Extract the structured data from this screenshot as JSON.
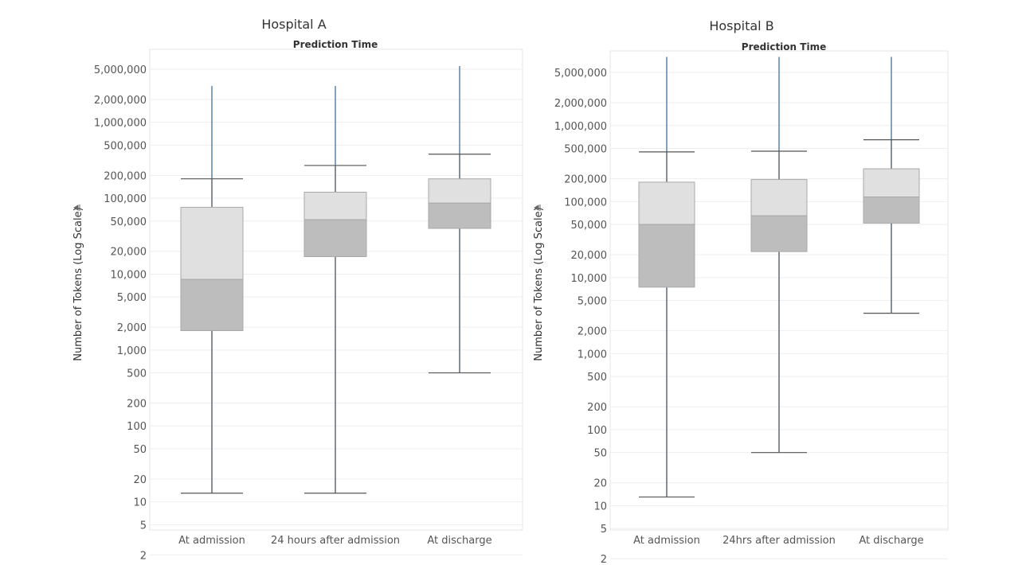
{
  "chart_data": [
    {
      "type": "box",
      "title": "Hospital A",
      "subtitle": "Prediction Time",
      "ylabel": "Number of Tokens (Log Scale)",
      "ylabel_icon": "sort-icon",
      "yscale": "log",
      "ylim": [
        1,
        8000000
      ],
      "grid": true,
      "yticks": [
        {
          "value": 5000000,
          "label": "5,000,000"
        },
        {
          "value": 2000000,
          "label": "2,000,000"
        },
        {
          "value": 1000000,
          "label": "1,000,000"
        },
        {
          "value": 500000,
          "label": "500,000"
        },
        {
          "value": 200000,
          "label": "200,000"
        },
        {
          "value": 100000,
          "label": "100,000"
        },
        {
          "value": 50000,
          "label": "50,000"
        },
        {
          "value": 20000,
          "label": "20,000"
        },
        {
          "value": 10000,
          "label": "10,000"
        },
        {
          "value": 5000,
          "label": "5,000"
        },
        {
          "value": 2000,
          "label": "2,000"
        },
        {
          "value": 1000,
          "label": "1,000"
        },
        {
          "value": 500,
          "label": "500"
        },
        {
          "value": 200,
          "label": "200"
        },
        {
          "value": 100,
          "label": "100"
        },
        {
          "value": 50,
          "label": "50"
        },
        {
          "value": 20,
          "label": "20"
        },
        {
          "value": 10,
          "label": "10"
        },
        {
          "value": 5,
          "label": "5"
        },
        {
          "value": 2,
          "label": "2"
        }
      ],
      "categories": [
        "At admission",
        "24 hours after admission",
        "At discharge"
      ],
      "boxes": [
        {
          "whisker_low": 13,
          "q1": 1800,
          "median": 8500,
          "q3": 76000,
          "whisker_high": 180000,
          "max": 3000000
        },
        {
          "whisker_low": 13,
          "q1": 17000,
          "median": 52000,
          "q3": 120000,
          "whisker_high": 270000,
          "max": 3000000
        },
        {
          "whisker_low": 500,
          "q1": 40000,
          "median": 86000,
          "q3": 180000,
          "whisker_high": 380000,
          "max": 5500000
        }
      ]
    },
    {
      "type": "box",
      "title": "Hospital B",
      "subtitle": "Prediction Time",
      "ylabel": "Number of Tokens (Log Scale)",
      "ylabel_icon": "sort-icon",
      "yscale": "log",
      "ylim": [
        1,
        8000000
      ],
      "grid": true,
      "yticks": [
        {
          "value": 5000000,
          "label": "5,000,000"
        },
        {
          "value": 2000000,
          "label": "2,000,000"
        },
        {
          "value": 1000000,
          "label": "1,000,000"
        },
        {
          "value": 500000,
          "label": "500,000"
        },
        {
          "value": 200000,
          "label": "200,000"
        },
        {
          "value": 100000,
          "label": "100,000"
        },
        {
          "value": 50000,
          "label": "50,000"
        },
        {
          "value": 20000,
          "label": "20,000"
        },
        {
          "value": 10000,
          "label": "10,000"
        },
        {
          "value": 5000,
          "label": "5,000"
        },
        {
          "value": 2000,
          "label": "2,000"
        },
        {
          "value": 1000,
          "label": "1,000"
        },
        {
          "value": 500,
          "label": "500"
        },
        {
          "value": 200,
          "label": "200"
        },
        {
          "value": 100,
          "label": "100"
        },
        {
          "value": 50,
          "label": "50"
        },
        {
          "value": 20,
          "label": "20"
        },
        {
          "value": 10,
          "label": "10"
        },
        {
          "value": 5,
          "label": "5"
        },
        {
          "value": 2,
          "label": "2"
        }
      ],
      "categories": [
        "At admission",
        "24hrs after admission",
        "At discharge"
      ],
      "boxes": [
        {
          "whisker_low": 13,
          "q1": 7500,
          "median": 50000,
          "q3": 180000,
          "whisker_high": 450000,
          "max": 8000000
        },
        {
          "whisker_low": 50,
          "q1": 22000,
          "median": 65000,
          "q3": 195000,
          "whisker_high": 460000,
          "max": 8000000
        },
        {
          "whisker_low": 3400,
          "q1": 52000,
          "median": 115000,
          "q3": 270000,
          "whisker_high": 650000,
          "max": 8000000
        }
      ]
    }
  ],
  "colors": {
    "upper_box": "#e0e0e0",
    "lower_box": "#bdbdbd",
    "box_edge": "#a8a8a8",
    "whisker": "#555555",
    "outlier_line": "#4e79a7"
  }
}
